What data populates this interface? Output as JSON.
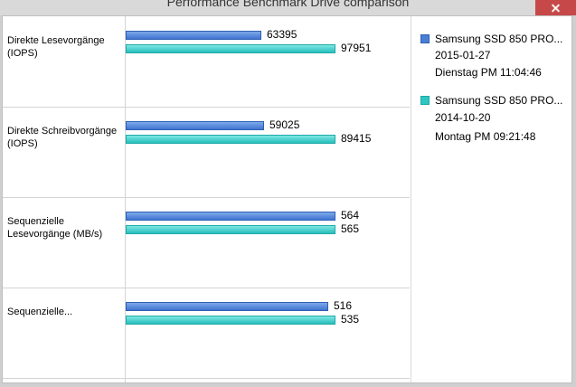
{
  "window": {
    "title": "Performance Benchmark Drive comparison"
  },
  "legend": [
    {
      "name": "Samsung SSD 850 PRO...",
      "date": "2015-01-27",
      "time": "Dienstag PM 11:04:46",
      "color": "#4a7fd6"
    },
    {
      "name": "Samsung SSD 850 PRO...",
      "date": "2014-10-20",
      "time": "Montag PM 09:21:48",
      "color": "#2dc6c3"
    }
  ],
  "chart_data": {
    "type": "bar",
    "orientation": "horizontal",
    "categories": [
      [
        "Direkte Lesevorgänge",
        "(IOPS)"
      ],
      [
        "Direkte Schreibvorgänge",
        "(IOPS)"
      ],
      [
        "Sequenzielle",
        "Lesevorgänge (MB/s)"
      ],
      [
        "Sequenzielle..."
      ]
    ],
    "series": [
      {
        "values": [
          63395,
          59025,
          564,
          516
        ]
      },
      {
        "values": [
          97951,
          89415,
          565,
          535
        ]
      }
    ],
    "value_labels": [
      [
        "63395",
        "59025",
        "564",
        "516"
      ],
      [
        "97951",
        "89415",
        "565",
        "535"
      ]
    ],
    "category_max": [
      97951,
      89415,
      565,
      535
    ],
    "legend_position": "right"
  }
}
